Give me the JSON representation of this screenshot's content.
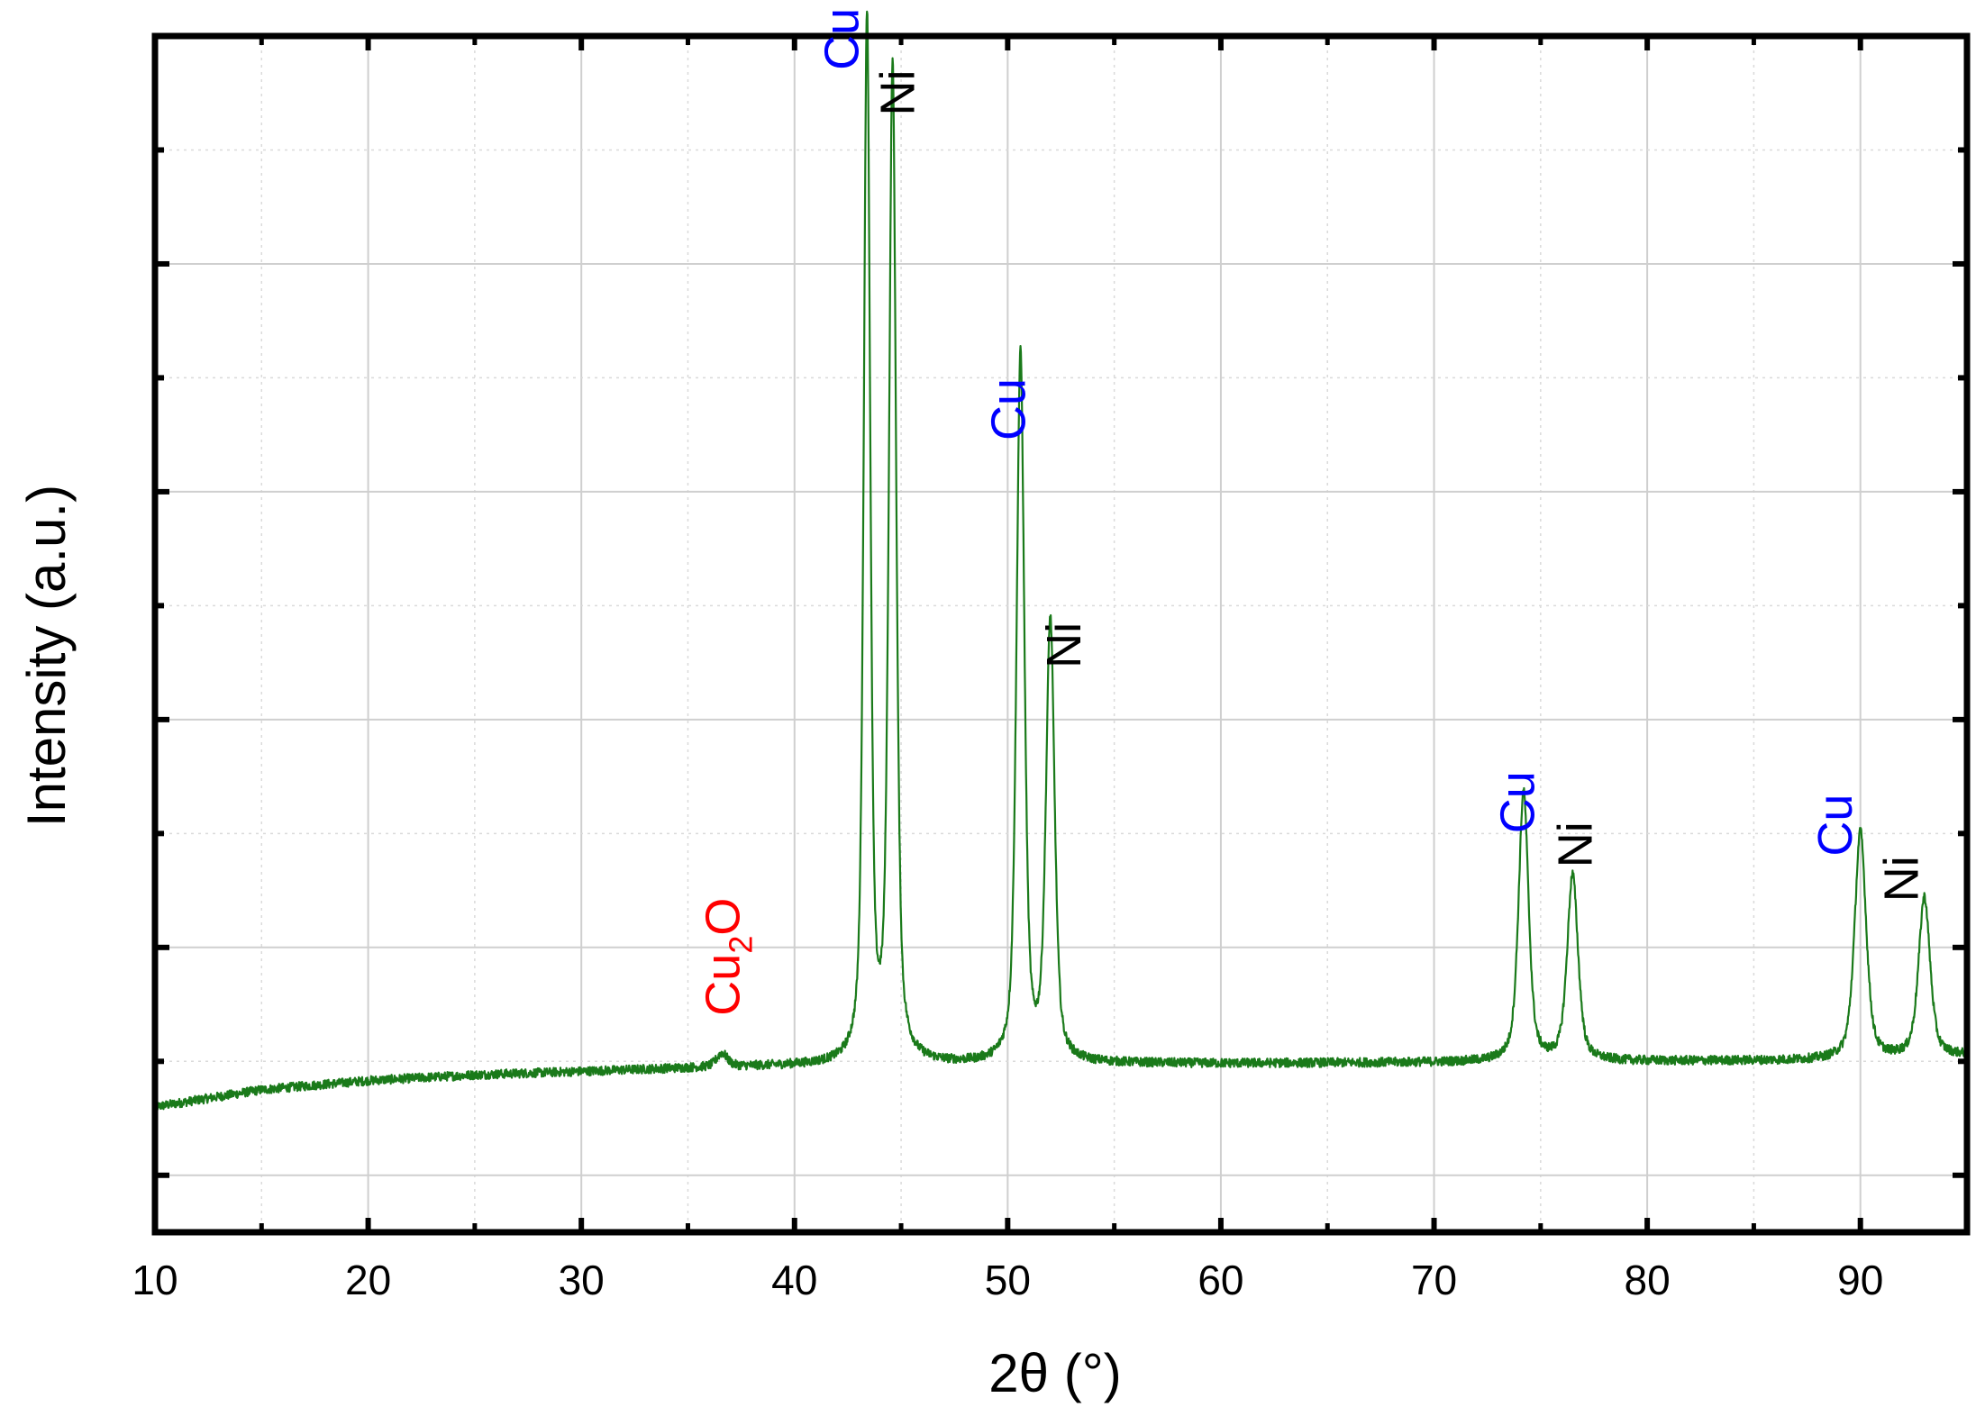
{
  "chart_data": {
    "type": "line",
    "title": "",
    "xlabel_main": "2θ",
    "xlabel_unit": "(°)",
    "ylabel": "Intensity (a.u.)",
    "xlim": [
      10,
      95
    ],
    "ylim": [
      -0.05,
      1.0
    ],
    "x_ticks": [
      10,
      20,
      30,
      40,
      50,
      60,
      70,
      80,
      90
    ],
    "x_minor_ticks": [
      15,
      25,
      35,
      45,
      55,
      65,
      75,
      85
    ],
    "y_ticks": [
      0.0,
      0.1,
      0.2,
      0.3,
      0.4,
      0.5,
      0.6,
      0.7,
      0.8,
      0.9
    ],
    "y_tick_labels_shown": false,
    "grid": true,
    "line_color": "#1a7a1a",
    "noise_amplitude": 0.004,
    "background_curve": [
      [
        10,
        0.06
      ],
      [
        15,
        0.075
      ],
      [
        20,
        0.083
      ],
      [
        25,
        0.088
      ],
      [
        30,
        0.091
      ],
      [
        35,
        0.094
      ],
      [
        40,
        0.096
      ],
      [
        45,
        0.097
      ],
      [
        50,
        0.097
      ],
      [
        55,
        0.098
      ],
      [
        60,
        0.098
      ],
      [
        70,
        0.099
      ],
      [
        80,
        0.1
      ],
      [
        90,
        0.101
      ],
      [
        95,
        0.105
      ]
    ],
    "peaks": [
      {
        "position": 36.6,
        "height": 0.012,
        "width": 0.3,
        "phase": "Cu2O"
      },
      {
        "position": 43.4,
        "height": 0.915,
        "width": 0.18,
        "phase": "Cu"
      },
      {
        "position": 44.6,
        "height": 0.87,
        "width": 0.2,
        "phase": "Ni"
      },
      {
        "position": 50.6,
        "height": 0.62,
        "width": 0.22,
        "phase": "Cu"
      },
      {
        "position": 52.0,
        "height": 0.385,
        "width": 0.24,
        "phase": "Ni"
      },
      {
        "position": 74.2,
        "height": 0.236,
        "width": 0.28,
        "phase": "Cu"
      },
      {
        "position": 76.5,
        "height": 0.163,
        "width": 0.3,
        "phase": "Ni"
      },
      {
        "position": 90.0,
        "height": 0.2,
        "width": 0.32,
        "phase": "Cu"
      },
      {
        "position": 93.0,
        "height": 0.14,
        "width": 0.32,
        "phase": "Ni"
      }
    ],
    "annotations": [
      {
        "id": "cu2o",
        "main": "Cu",
        "sub": "2",
        "tail": "O",
        "color": "#ff0000",
        "x": 37.4,
        "y": 0.14
      },
      {
        "id": "cu1",
        "main": "Cu",
        "color": "#0000ff",
        "x": 43.0,
        "y": 0.97
      },
      {
        "id": "ni1",
        "main": "Ni",
        "color": "#000000",
        "x": 45.6,
        "y": 0.93
      },
      {
        "id": "cu2",
        "main": "Cu",
        "color": "#0000ff",
        "x": 50.8,
        "y": 0.645
      },
      {
        "id": "ni2",
        "main": "Ni",
        "color": "#000000",
        "x": 53.4,
        "y": 0.445
      },
      {
        "id": "cu3",
        "main": "Cu",
        "color": "#0000ff",
        "x": 74.7,
        "y": 0.3
      },
      {
        "id": "ni3",
        "main": "Ni",
        "color": "#000000",
        "x": 77.4,
        "y": 0.27
      },
      {
        "id": "cu4",
        "main": "Cu",
        "color": "#0000ff",
        "x": 89.6,
        "y": 0.28
      },
      {
        "id": "ni4",
        "main": "Ni",
        "color": "#000000",
        "x": 92.7,
        "y": 0.24
      }
    ]
  }
}
